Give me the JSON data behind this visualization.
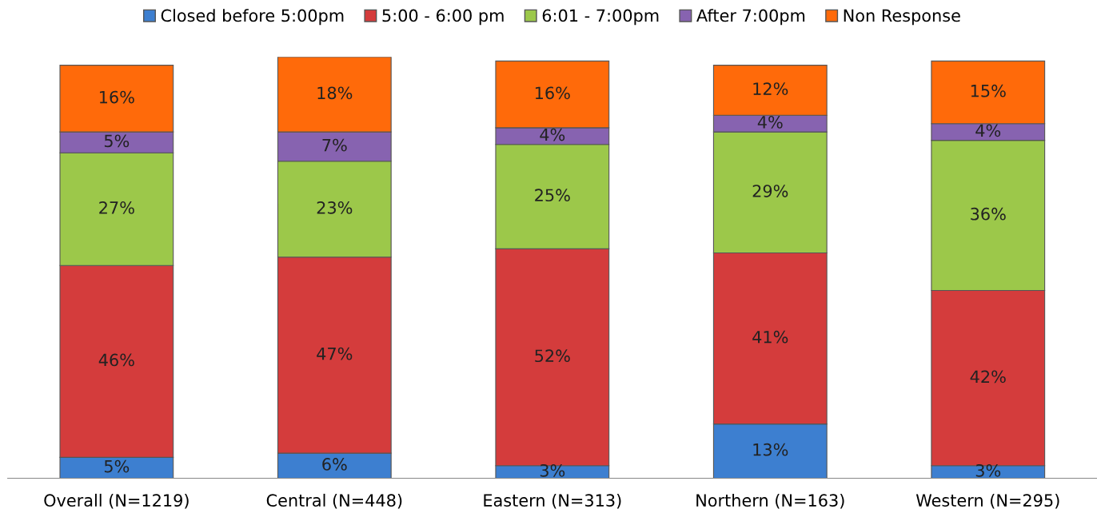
{
  "chart_data": {
    "type": "bar",
    "stacked": true,
    "legend": "top",
    "grid": false,
    "categories": [
      "Overall (N=1219)",
      "Central (N=448)",
      "Eastern (N=313)",
      "Northern (N=163)",
      "Western (N=295)"
    ],
    "series": [
      {
        "name": "Closed before 5:00pm",
        "color": "#3d7fd0",
        "values": [
          5,
          6,
          3,
          13,
          3
        ],
        "value_labels": [
          "5%",
          "6%",
          "3%",
          "13%",
          "3%"
        ]
      },
      {
        "name": "5:00 - 6:00 pm",
        "color": "#d43c3c",
        "values": [
          46,
          47,
          52,
          41,
          42
        ],
        "value_labels": [
          "46%",
          "47%",
          "52%",
          "41%",
          "42%"
        ]
      },
      {
        "name": "6:01 - 7:00pm",
        "color": "#9cc84a",
        "values": [
          27,
          23,
          25,
          29,
          36
        ],
        "value_labels": [
          "27%",
          "23%",
          "25%",
          "29%",
          "36%"
        ]
      },
      {
        "name": "After 7:00pm",
        "color": "#8763b0",
        "values": [
          5,
          7,
          4,
          4,
          4
        ],
        "value_labels": [
          "5%",
          "7%",
          "4%",
          "4%",
          "4%"
        ]
      },
      {
        "name": "Non Response",
        "color": "#ff6a0a",
        "values": [
          16,
          18,
          16,
          12,
          15
        ],
        "value_labels": [
          "16%",
          "18%",
          "16%",
          "12%",
          "15%"
        ]
      }
    ]
  }
}
